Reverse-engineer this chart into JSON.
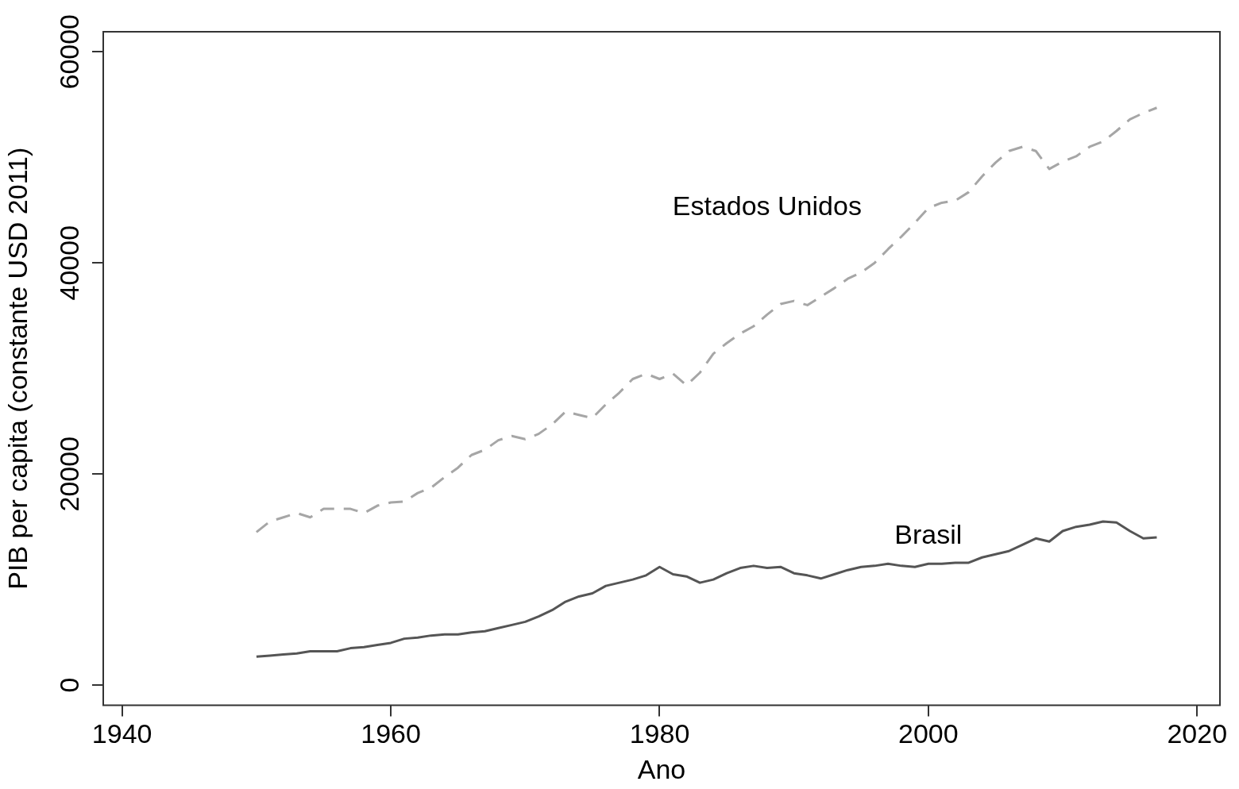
{
  "chart_data": {
    "type": "line",
    "xlabel": "Ano",
    "ylabel": "PIB per capita (constante USD 2011)",
    "x": [
      1950,
      1951,
      1952,
      1953,
      1954,
      1955,
      1956,
      1957,
      1958,
      1959,
      1960,
      1961,
      1962,
      1963,
      1964,
      1965,
      1966,
      1967,
      1968,
      1969,
      1970,
      1971,
      1972,
      1973,
      1974,
      1975,
      1976,
      1977,
      1978,
      1979,
      1980,
      1981,
      1982,
      1983,
      1984,
      1985,
      1986,
      1987,
      1988,
      1989,
      1990,
      1991,
      1992,
      1993,
      1994,
      1995,
      1996,
      1997,
      1998,
      1999,
      2000,
      2001,
      2002,
      2003,
      2004,
      2005,
      2006,
      2007,
      2008,
      2009,
      2010,
      2011,
      2012,
      2013,
      2014,
      2015,
      2016,
      2017
    ],
    "series": [
      {
        "name": "Estados Unidos",
        "color": "#a6a6a6",
        "line_style": "dashed",
        "values": [
          14500,
          15500,
          15900,
          16300,
          15900,
          16700,
          16700,
          16700,
          16300,
          17000,
          17300,
          17400,
          18200,
          18700,
          19700,
          20600,
          21800,
          22300,
          23200,
          23600,
          23300,
          23800,
          24700,
          25900,
          25600,
          25300,
          26600,
          27700,
          29000,
          29500,
          29000,
          29500,
          28400,
          29600,
          31400,
          32400,
          33300,
          34000,
          35100,
          36100,
          36400,
          36000,
          36800,
          37600,
          38500,
          39100,
          40000,
          41300,
          42500,
          43800,
          45200,
          45700,
          45900,
          46700,
          48200,
          49500,
          50600,
          51000,
          50600,
          48900,
          49600,
          50100,
          51000,
          51500,
          52500,
          53600,
          54200,
          54700
        ]
      },
      {
        "name": "Brasil",
        "color": "#555555",
        "line_style": "solid",
        "values": [
          2700,
          2800,
          2900,
          3000,
          3200,
          3200,
          3200,
          3500,
          3600,
          3800,
          4000,
          4400,
          4500,
          4700,
          4800,
          4800,
          5000,
          5100,
          5400,
          5700,
          6000,
          6500,
          7100,
          7900,
          8400,
          8700,
          9400,
          9700,
          10000,
          10400,
          11200,
          10500,
          10300,
          9700,
          10000,
          10600,
          11100,
          11300,
          11100,
          11200,
          10600,
          10400,
          10100,
          10500,
          10900,
          11200,
          11300,
          11500,
          11300,
          11200,
          11500,
          11500,
          11600,
          11600,
          12100,
          12400,
          12700,
          13300,
          13900,
          13600,
          14600,
          15000,
          15200,
          15500,
          15400,
          14600,
          13900,
          14000
        ]
      }
    ],
    "xlim": [
      1938.6,
      2021.7
    ],
    "xticks": [
      1940,
      1960,
      1980,
      2000,
      2020
    ],
    "ylim": [
      -1900,
      61900
    ],
    "yticks": [
      0,
      20000,
      40000,
      60000
    ],
    "grid": false,
    "legend": false,
    "marker": "none"
  }
}
